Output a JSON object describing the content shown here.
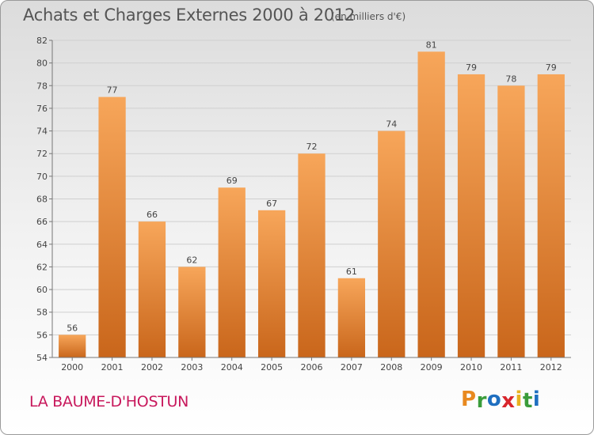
{
  "header": {
    "title": "Achats et Charges Externes 2000 à 2012",
    "subtitle": "(en milliers d'€)"
  },
  "footer": {
    "town": "LA BAUME-D'HOSTUN",
    "logo": {
      "letters": [
        "P",
        "r",
        "o",
        "x",
        "i",
        "t",
        "i"
      ],
      "colors": [
        "#e8891f",
        "#3a9c3a",
        "#1f6fc0",
        "#d8262c",
        "#e8b21f",
        "#3a9c3a",
        "#1f6fc0"
      ]
    }
  },
  "chart_data": {
    "type": "bar",
    "categories": [
      "2000",
      "2001",
      "2002",
      "2003",
      "2004",
      "2005",
      "2006",
      "2007",
      "2008",
      "2009",
      "2010",
      "2011",
      "2012"
    ],
    "values": [
      56,
      77,
      66,
      62,
      69,
      67,
      72,
      61,
      74,
      81,
      79,
      78,
      79
    ],
    "title": "Achats et Charges Externes 2000 à 2012",
    "subtitle": "(en milliers d'€)",
    "xlabel": "",
    "ylabel": "",
    "ylim": [
      54,
      82
    ],
    "yticks": [
      54,
      56,
      58,
      60,
      62,
      64,
      66,
      68,
      70,
      72,
      74,
      76,
      78,
      80,
      82
    ],
    "grid": true,
    "bar_color_top": "#f7a65a",
    "bar_color_bottom": "#c9661b"
  }
}
